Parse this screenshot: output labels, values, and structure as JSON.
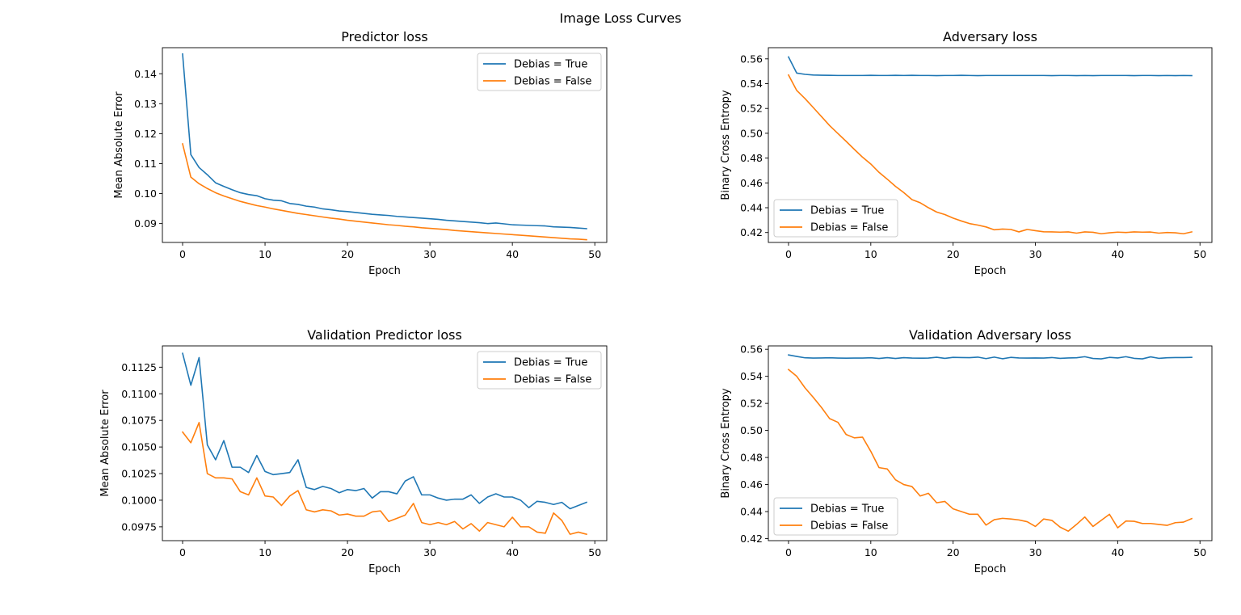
{
  "figure": {
    "suptitle": "Image Loss Curves"
  },
  "colors": {
    "Debias = True": "#1f77b4",
    "Debias = False": "#ff7f0e"
  },
  "chart_data": [
    {
      "type": "line",
      "title": "Predictor loss",
      "xlabel": "Epoch",
      "ylabel": "Mean Absolute Error",
      "xlim": [
        -2.45,
        51.45
      ],
      "ylim": [
        0.0837,
        0.1487
      ],
      "xticks": [
        0,
        10,
        20,
        30,
        40,
        50
      ],
      "yticks": [
        0.09,
        0.1,
        0.11,
        0.12,
        0.13,
        0.14
      ],
      "ytick_labels": [
        "0.09",
        "0.10",
        "0.11",
        "0.12",
        "0.13",
        "0.14"
      ],
      "legend_position": "upper-right",
      "x": [
        0,
        1,
        2,
        3,
        4,
        5,
        6,
        7,
        8,
        9,
        10,
        11,
        12,
        13,
        14,
        15,
        16,
        17,
        18,
        19,
        20,
        21,
        22,
        23,
        24,
        25,
        26,
        27,
        28,
        29,
        30,
        31,
        32,
        33,
        34,
        35,
        36,
        37,
        38,
        39,
        40,
        41,
        42,
        43,
        44,
        45,
        46,
        47,
        48,
        49
      ],
      "series": [
        {
          "name": "Debias = True",
          "values": [
            0.1466,
            0.113,
            0.1087,
            0.1063,
            0.1036,
            0.1024,
            0.1013,
            0.1003,
            0.0997,
            0.0993,
            0.0983,
            0.0978,
            0.0976,
            0.0967,
            0.0964,
            0.0958,
            0.0955,
            0.0949,
            0.0946,
            0.0942,
            0.094,
            0.0937,
            0.0934,
            0.0931,
            0.0929,
            0.0927,
            0.0924,
            0.0922,
            0.092,
            0.0918,
            0.0916,
            0.0914,
            0.0911,
            0.0909,
            0.0907,
            0.0905,
            0.0903,
            0.09,
            0.0902,
            0.0899,
            0.0896,
            0.0895,
            0.0894,
            0.0893,
            0.0892,
            0.0889,
            0.0888,
            0.0887,
            0.0885,
            0.0883
          ]
        },
        {
          "name": "Debias = False",
          "values": [
            0.1166,
            0.1055,
            0.1033,
            0.1017,
            0.1003,
            0.0992,
            0.0983,
            0.0974,
            0.0967,
            0.096,
            0.0955,
            0.0949,
            0.0944,
            0.0939,
            0.0934,
            0.093,
            0.0926,
            0.0922,
            0.0918,
            0.0915,
            0.0911,
            0.0908,
            0.0905,
            0.0902,
            0.0899,
            0.0896,
            0.0894,
            0.0891,
            0.0889,
            0.0886,
            0.0884,
            0.0882,
            0.088,
            0.0877,
            0.0875,
            0.0873,
            0.0871,
            0.0869,
            0.0867,
            0.0865,
            0.0863,
            0.0861,
            0.0859,
            0.0857,
            0.0855,
            0.0853,
            0.0851,
            0.0849,
            0.0848,
            0.0846
          ]
        }
      ]
    },
    {
      "type": "line",
      "title": "Adversary loss",
      "xlabel": "Epoch",
      "ylabel": "Binary Cross Entropy",
      "xlim": [
        -2.45,
        51.45
      ],
      "ylim": [
        0.412,
        0.569
      ],
      "xticks": [
        0,
        10,
        20,
        30,
        40,
        50
      ],
      "yticks": [
        0.42,
        0.44,
        0.46,
        0.48,
        0.5,
        0.52,
        0.54,
        0.56
      ],
      "ytick_labels": [
        "0.42",
        "0.44",
        "0.46",
        "0.48",
        "0.50",
        "0.52",
        "0.54",
        "0.56"
      ],
      "legend_position": "lower-left",
      "x": [
        0,
        1,
        2,
        3,
        4,
        5,
        6,
        7,
        8,
        9,
        10,
        11,
        12,
        13,
        14,
        15,
        16,
        17,
        18,
        19,
        20,
        21,
        22,
        23,
        24,
        25,
        26,
        27,
        28,
        29,
        30,
        31,
        32,
        33,
        34,
        35,
        36,
        37,
        38,
        39,
        40,
        41,
        42,
        43,
        44,
        45,
        46,
        47,
        48,
        49
      ],
      "series": [
        {
          "name": "Debias = True",
          "values": [
            0.5615,
            0.5485,
            0.5475,
            0.547,
            0.5468,
            0.5467,
            0.5466,
            0.5466,
            0.5466,
            0.5466,
            0.5467,
            0.5466,
            0.5466,
            0.5467,
            0.5466,
            0.5467,
            0.5466,
            0.5466,
            0.5465,
            0.5466,
            0.5466,
            0.5467,
            0.5466,
            0.5465,
            0.5466,
            0.5466,
            0.5466,
            0.5466,
            0.5466,
            0.5466,
            0.5466,
            0.5466,
            0.5465,
            0.5466,
            0.5466,
            0.5465,
            0.5466,
            0.5465,
            0.5466,
            0.5466,
            0.5466,
            0.5466,
            0.5465,
            0.5466,
            0.5466,
            0.5465,
            0.5466,
            0.5465,
            0.5466,
            0.5465
          ]
        },
        {
          "name": "Debias = False",
          "values": [
            0.547,
            0.5345,
            0.528,
            0.5208,
            0.5135,
            0.5062,
            0.4998,
            0.4935,
            0.487,
            0.4807,
            0.4752,
            0.4685,
            0.463,
            0.4572,
            0.4522,
            0.4465,
            0.444,
            0.44,
            0.4365,
            0.4345,
            0.4316,
            0.4293,
            0.4272,
            0.426,
            0.4245,
            0.4222,
            0.4228,
            0.4225,
            0.4205,
            0.4225,
            0.4215,
            0.4206,
            0.4205,
            0.4203,
            0.4205,
            0.4195,
            0.4205,
            0.4202,
            0.419,
            0.4198,
            0.4203,
            0.42,
            0.4205,
            0.4203,
            0.4204,
            0.4195,
            0.42,
            0.4198,
            0.419,
            0.4205
          ]
        }
      ]
    },
    {
      "type": "line",
      "title": "Validation Predictor loss",
      "xlabel": "Epoch",
      "ylabel": "Mean Absolute Error",
      "xlim": [
        -2.45,
        51.45
      ],
      "ylim": [
        0.0962,
        0.1145
      ],
      "xticks": [
        0,
        10,
        20,
        30,
        40,
        50
      ],
      "yticks": [
        0.0975,
        0.1,
        0.1025,
        0.105,
        0.1075,
        0.11,
        0.1125
      ],
      "ytick_labels": [
        "0.0975",
        "0.1000",
        "0.1025",
        "0.1050",
        "0.1075",
        "0.1100",
        "0.1125"
      ],
      "legend_position": "upper-right",
      "x": [
        0,
        1,
        2,
        3,
        4,
        5,
        6,
        7,
        8,
        9,
        10,
        11,
        12,
        13,
        14,
        15,
        16,
        17,
        18,
        19,
        20,
        21,
        22,
        23,
        24,
        25,
        26,
        27,
        28,
        29,
        30,
        31,
        32,
        33,
        34,
        35,
        36,
        37,
        38,
        39,
        40,
        41,
        42,
        43,
        44,
        45,
        46,
        47,
        48,
        49
      ],
      "series": [
        {
          "name": "Debias = True",
          "values": [
            0.1138,
            0.1108,
            0.1134,
            0.1052,
            0.1038,
            0.1056,
            0.1031,
            0.1031,
            0.1026,
            0.1042,
            0.1027,
            0.1024,
            0.1025,
            0.1026,
            0.1038,
            0.1012,
            0.101,
            0.1013,
            0.1011,
            0.1007,
            0.101,
            0.1009,
            0.1011,
            0.1002,
            0.1008,
            0.1008,
            0.1006,
            0.1018,
            0.1022,
            0.1005,
            0.1005,
            0.1002,
            0.1,
            0.1001,
            0.1001,
            0.1005,
            0.0997,
            0.1003,
            0.1006,
            0.1003,
            0.1003,
            0.1,
            0.0993,
            0.0999,
            0.0998,
            0.0996,
            0.0998,
            0.0992,
            0.0995,
            0.0998
          ]
        },
        {
          "name": "Debias = False",
          "values": [
            0.1064,
            0.1054,
            0.1073,
            0.1025,
            0.1021,
            0.1021,
            0.102,
            0.1008,
            0.1005,
            0.1021,
            0.1004,
            0.1003,
            0.0995,
            0.1004,
            0.1009,
            0.0991,
            0.0989,
            0.0991,
            0.099,
            0.0986,
            0.0987,
            0.0985,
            0.0985,
            0.0989,
            0.099,
            0.098,
            0.0983,
            0.0986,
            0.0997,
            0.0979,
            0.0977,
            0.0979,
            0.0977,
            0.098,
            0.0973,
            0.0978,
            0.0971,
            0.0979,
            0.0977,
            0.0975,
            0.0984,
            0.0975,
            0.0975,
            0.097,
            0.0969,
            0.0988,
            0.0981,
            0.0968,
            0.097,
            0.0968
          ]
        }
      ]
    },
    {
      "type": "line",
      "title": "Validation Adversary loss",
      "xlabel": "Epoch",
      "ylabel": "Binary Cross Entropy",
      "xlim": [
        -2.45,
        51.45
      ],
      "ylim": [
        0.4185,
        0.5625
      ],
      "xticks": [
        0,
        10,
        20,
        30,
        40,
        50
      ],
      "yticks": [
        0.42,
        0.44,
        0.46,
        0.48,
        0.5,
        0.52,
        0.54,
        0.56
      ],
      "ytick_labels": [
        "0.42",
        "0.44",
        "0.46",
        "0.48",
        "0.50",
        "0.52",
        "0.54",
        "0.56"
      ],
      "legend_position": "lower-left",
      "x": [
        0,
        1,
        2,
        3,
        4,
        5,
        6,
        7,
        8,
        9,
        10,
        11,
        12,
        13,
        14,
        15,
        16,
        17,
        18,
        19,
        20,
        21,
        22,
        23,
        24,
        25,
        26,
        27,
        28,
        29,
        30,
        31,
        32,
        33,
        34,
        35,
        36,
        37,
        38,
        39,
        40,
        41,
        42,
        43,
        44,
        45,
        46,
        47,
        48,
        49
      ],
      "series": [
        {
          "name": "Debias = True",
          "values": [
            0.5558,
            0.5547,
            0.5537,
            0.5535,
            0.5536,
            0.5537,
            0.5535,
            0.5534,
            0.5535,
            0.5535,
            0.5537,
            0.5532,
            0.5538,
            0.5532,
            0.5538,
            0.5535,
            0.5534,
            0.5535,
            0.5541,
            0.5533,
            0.554,
            0.5539,
            0.5538,
            0.5542,
            0.5531,
            0.5542,
            0.553,
            0.554,
            0.5536,
            0.5535,
            0.5536,
            0.5535,
            0.5539,
            0.5533,
            0.5536,
            0.5537,
            0.5545,
            0.5532,
            0.5529,
            0.554,
            0.5536,
            0.5545,
            0.5533,
            0.5529,
            0.5544,
            0.5533,
            0.5537,
            0.5539,
            0.5539,
            0.554
          ]
        },
        {
          "name": "Debias = False",
          "values": [
            0.545,
            0.54,
            0.5315,
            0.5245,
            0.517,
            0.5087,
            0.506,
            0.497,
            0.4945,
            0.495,
            0.4845,
            0.4725,
            0.4715,
            0.4635,
            0.46,
            0.4585,
            0.4515,
            0.4535,
            0.4465,
            0.4475,
            0.442,
            0.44,
            0.438,
            0.438,
            0.43,
            0.434,
            0.435,
            0.4345,
            0.4338,
            0.4325,
            0.429,
            0.4345,
            0.4335,
            0.4285,
            0.4255,
            0.4305,
            0.436,
            0.429,
            0.4335,
            0.438,
            0.428,
            0.433,
            0.4328,
            0.4312,
            0.4312,
            0.4305,
            0.4298,
            0.4318,
            0.4322,
            0.4348
          ]
        }
      ]
    }
  ]
}
